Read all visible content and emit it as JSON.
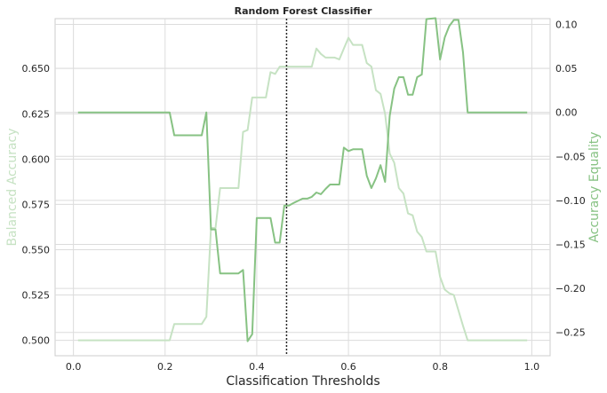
{
  "chart_data": {
    "type": "line",
    "title": "Random Forest Classifier",
    "xlabel": "Classification Thresholds",
    "ylabel_left": "Balanced Accuracy",
    "ylabel_right": "Accuracy Equality",
    "xlim": [
      -0.04,
      1.04
    ],
    "ylim_left": [
      0.4915,
      0.6775
    ],
    "ylim_right": [
      -0.2765,
      0.1065
    ],
    "x_ticks": [
      "0.0",
      "0.2",
      "0.4",
      "0.6",
      "0.8",
      "1.0"
    ],
    "x_tick_values": [
      0.0,
      0.2,
      0.4,
      0.6,
      0.8,
      1.0
    ],
    "left_ticks": [
      "0.500",
      "0.525",
      "0.550",
      "0.575",
      "0.600",
      "0.625",
      "0.650"
    ],
    "left_tick_values": [
      0.5,
      0.525,
      0.55,
      0.575,
      0.6,
      0.625,
      0.65
    ],
    "right_ticks": [
      "0.10",
      "0.05",
      "0.00",
      "−0.05",
      "−0.10",
      "−0.15",
      "−0.20",
      "−0.25"
    ],
    "right_tick_values": [
      0.1,
      0.05,
      0.0,
      -0.05,
      -0.1,
      -0.15,
      -0.2,
      -0.25
    ],
    "grid": true,
    "threshold_line": {
      "x": 0.465,
      "style": "dotted"
    },
    "colors": {
      "balanced": "#c6e2c3",
      "equality": "#87c283",
      "threshold": "#262626"
    },
    "series": [
      {
        "key": "balanced",
        "axis": "left",
        "values": [
          [
            0.01,
            0.5
          ],
          [
            0.2,
            0.5
          ],
          [
            0.21,
            0.5
          ],
          [
            0.22,
            0.509
          ],
          [
            0.28,
            0.509
          ],
          [
            0.29,
            0.513
          ],
          [
            0.3,
            0.562
          ],
          [
            0.31,
            0.562
          ],
          [
            0.32,
            0.584
          ],
          [
            0.36,
            0.584
          ],
          [
            0.37,
            0.615
          ],
          [
            0.38,
            0.616
          ],
          [
            0.39,
            0.634
          ],
          [
            0.42,
            0.634
          ],
          [
            0.43,
            0.648
          ],
          [
            0.44,
            0.647
          ],
          [
            0.45,
            0.651
          ],
          [
            0.52,
            0.651
          ],
          [
            0.53,
            0.661
          ],
          [
            0.54,
            0.658
          ],
          [
            0.55,
            0.656
          ],
          [
            0.57,
            0.656
          ],
          [
            0.58,
            0.655
          ],
          [
            0.59,
            0.661
          ],
          [
            0.6,
            0.667
          ],
          [
            0.61,
            0.663
          ],
          [
            0.63,
            0.663
          ],
          [
            0.64,
            0.653
          ],
          [
            0.65,
            0.651
          ],
          [
            0.66,
            0.638
          ],
          [
            0.67,
            0.636
          ],
          [
            0.68,
            0.625
          ],
          [
            0.69,
            0.603
          ],
          [
            0.7,
            0.598
          ],
          [
            0.71,
            0.584
          ],
          [
            0.72,
            0.581
          ],
          [
            0.73,
            0.57
          ],
          [
            0.74,
            0.569
          ],
          [
            0.75,
            0.56
          ],
          [
            0.76,
            0.557
          ],
          [
            0.77,
            0.549
          ],
          [
            0.79,
            0.549
          ],
          [
            0.8,
            0.535
          ],
          [
            0.81,
            0.528
          ],
          [
            0.82,
            0.526
          ],
          [
            0.83,
            0.525
          ],
          [
            0.85,
            0.508
          ],
          [
            0.86,
            0.5
          ],
          [
            0.99,
            0.5
          ]
        ]
      },
      {
        "key": "equality",
        "axis": "right",
        "values": [
          [
            0.01,
            0.0
          ],
          [
            0.2,
            0.0
          ],
          [
            0.21,
            0.0
          ],
          [
            0.22,
            -0.026
          ],
          [
            0.28,
            -0.026
          ],
          [
            0.29,
            0.0
          ],
          [
            0.3,
            -0.133
          ],
          [
            0.31,
            -0.133
          ],
          [
            0.32,
            -0.183
          ],
          [
            0.36,
            -0.183
          ],
          [
            0.37,
            -0.179
          ],
          [
            0.38,
            -0.26
          ],
          [
            0.39,
            -0.252
          ],
          [
            0.4,
            -0.12
          ],
          [
            0.43,
            -0.12
          ],
          [
            0.44,
            -0.148
          ],
          [
            0.45,
            -0.148
          ],
          [
            0.46,
            -0.106
          ],
          [
            0.47,
            -0.106
          ],
          [
            0.48,
            -0.103
          ],
          [
            0.5,
            -0.098
          ],
          [
            0.51,
            -0.098
          ],
          [
            0.52,
            -0.096
          ],
          [
            0.53,
            -0.091
          ],
          [
            0.54,
            -0.093
          ],
          [
            0.55,
            -0.087
          ],
          [
            0.56,
            -0.082
          ],
          [
            0.58,
            -0.082
          ],
          [
            0.59,
            -0.04
          ],
          [
            0.6,
            -0.044
          ],
          [
            0.61,
            -0.042
          ],
          [
            0.63,
            -0.042
          ],
          [
            0.64,
            -0.072
          ],
          [
            0.65,
            -0.086
          ],
          [
            0.66,
            -0.075
          ],
          [
            0.67,
            -0.06
          ],
          [
            0.68,
            -0.079
          ],
          [
            0.69,
            -0.004
          ],
          [
            0.7,
            0.027
          ],
          [
            0.71,
            0.04
          ],
          [
            0.72,
            0.04
          ],
          [
            0.73,
            0.02
          ],
          [
            0.74,
            0.02
          ],
          [
            0.75,
            0.04
          ],
          [
            0.76,
            0.043
          ],
          [
            0.77,
            0.106
          ],
          [
            0.79,
            0.107
          ],
          [
            0.8,
            0.06
          ],
          [
            0.81,
            0.085
          ],
          [
            0.82,
            0.098
          ],
          [
            0.83,
            0.105
          ],
          [
            0.84,
            0.105
          ],
          [
            0.85,
            0.068
          ],
          [
            0.86,
            0.0
          ],
          [
            0.99,
            0.0
          ]
        ]
      }
    ]
  }
}
